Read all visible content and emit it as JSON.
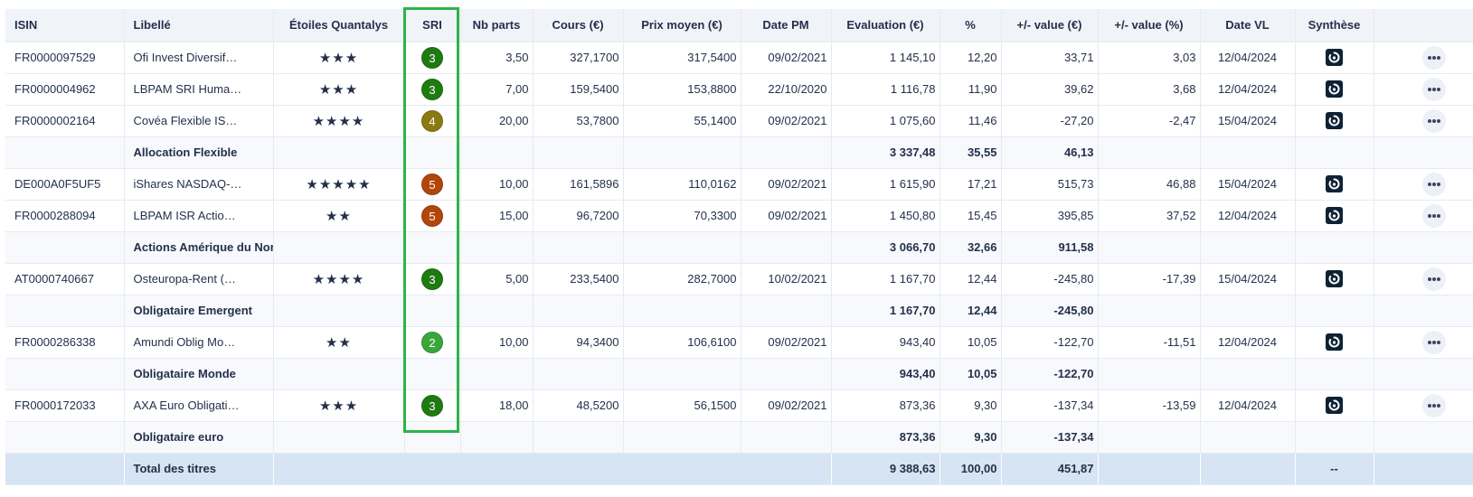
{
  "columns": [
    "ISIN",
    "Libellé",
    "Étoiles Quantalys",
    "SRI",
    "Nb parts",
    "Cours (€)",
    "Prix moyen (€)",
    "Date PM",
    "Evaluation (€)",
    "%",
    "+/- value (€)",
    "+/- value (%)",
    "Date VL",
    "Synthèse",
    ""
  ],
  "sri_colors": {
    "2": "#3aa63a",
    "3": "#1f7a12",
    "4": "#8a7a10",
    "5": "#b1460d"
  },
  "rows": [
    {
      "type": "fund",
      "isin": "FR0000097529",
      "libelle": "Ofi Invest Diversif…",
      "stars": "★★★",
      "sri": "3",
      "nb_parts": "3,50",
      "cours": "327,1700",
      "prix_moyen": "317,5400",
      "date_pm": "09/02/2021",
      "evaluation": "1 145,10",
      "pct": "12,20",
      "pv_eur": "33,71",
      "pv_pct": "3,03",
      "date_vl": "12/04/2024"
    },
    {
      "type": "fund",
      "isin": "FR0000004962",
      "libelle": "LBPAM SRI Huma…",
      "stars": "★★★",
      "sri": "3",
      "nb_parts": "7,00",
      "cours": "159,5400",
      "prix_moyen": "153,8800",
      "date_pm": "22/10/2020",
      "evaluation": "1 116,78",
      "pct": "11,90",
      "pv_eur": "39,62",
      "pv_pct": "3,68",
      "date_vl": "12/04/2024"
    },
    {
      "type": "fund",
      "isin": "FR0000002164",
      "libelle": "Covéa Flexible IS…",
      "stars": "★★★★",
      "sri": "4",
      "nb_parts": "20,00",
      "cours": "53,7800",
      "prix_moyen": "55,1400",
      "date_pm": "09/02/2021",
      "evaluation": "1 075,60",
      "pct": "11,46",
      "pv_eur": "-27,20",
      "pv_pct": "-2,47",
      "date_vl": "15/04/2024"
    },
    {
      "type": "subtotal",
      "label": "Allocation Flexible",
      "evaluation": "3 337,48",
      "pct": "35,55",
      "pv_eur": "46,13"
    },
    {
      "type": "fund",
      "isin": "DE000A0F5UF5",
      "libelle": "iShares NASDAQ-…",
      "stars": "★★★★★",
      "sri": "5",
      "nb_parts": "10,00",
      "cours": "161,5896",
      "prix_moyen": "110,0162",
      "date_pm": "09/02/2021",
      "evaluation": "1 615,90",
      "pct": "17,21",
      "pv_eur": "515,73",
      "pv_pct": "46,88",
      "date_vl": "15/04/2024"
    },
    {
      "type": "fund",
      "isin": "FR0000288094",
      "libelle": "LBPAM ISR Actio…",
      "stars": "★★",
      "sri": "5",
      "nb_parts": "15,00",
      "cours": "96,7200",
      "prix_moyen": "70,3300",
      "date_pm": "09/02/2021",
      "evaluation": "1 450,80",
      "pct": "15,45",
      "pv_eur": "395,85",
      "pv_pct": "37,52",
      "date_vl": "12/04/2024"
    },
    {
      "type": "subtotal",
      "label": "Actions Amérique du Nord",
      "evaluation": "3 066,70",
      "pct": "32,66",
      "pv_eur": "911,58"
    },
    {
      "type": "fund",
      "isin": "AT0000740667",
      "libelle": "Osteuropa-Rent (…",
      "stars": "★★★★",
      "sri": "3",
      "nb_parts": "5,00",
      "cours": "233,5400",
      "prix_moyen": "282,7000",
      "date_pm": "10/02/2021",
      "evaluation": "1 167,70",
      "pct": "12,44",
      "pv_eur": "-245,80",
      "pv_pct": "-17,39",
      "date_vl": "15/04/2024"
    },
    {
      "type": "subtotal",
      "label": "Obligataire Emergent",
      "evaluation": "1 167,70",
      "pct": "12,44",
      "pv_eur": "-245,80"
    },
    {
      "type": "fund",
      "isin": "FR0000286338",
      "libelle": "Amundi Oblig Mo…",
      "stars": "★★",
      "sri": "2",
      "nb_parts": "10,00",
      "cours": "94,3400",
      "prix_moyen": "106,6100",
      "date_pm": "09/02/2021",
      "evaluation": "943,40",
      "pct": "10,05",
      "pv_eur": "-122,70",
      "pv_pct": "-11,51",
      "date_vl": "12/04/2024"
    },
    {
      "type": "subtotal",
      "label": "Obligataire Monde",
      "evaluation": "943,40",
      "pct": "10,05",
      "pv_eur": "-122,70"
    },
    {
      "type": "fund",
      "isin": "FR0000172033",
      "libelle": "AXA Euro Obligati…",
      "stars": "★★★",
      "sri": "3",
      "nb_parts": "18,00",
      "cours": "48,5200",
      "prix_moyen": "56,1500",
      "date_pm": "09/02/2021",
      "evaluation": "873,36",
      "pct": "9,30",
      "pv_eur": "-137,34",
      "pv_pct": "-13,59",
      "date_vl": "12/04/2024"
    },
    {
      "type": "subtotal",
      "label": "Obligataire euro",
      "evaluation": "873,36",
      "pct": "9,30",
      "pv_eur": "-137,34"
    }
  ],
  "total": {
    "label": "Total des titres",
    "evaluation": "9 388,63",
    "pct": "100,00",
    "pv_eur": "451,87",
    "synthese": "--"
  },
  "icons": {
    "synthese": "synthese-report-icon",
    "actions": "more-options-icon"
  },
  "highlight": {
    "column": "SRI",
    "color": "#2db34a"
  }
}
